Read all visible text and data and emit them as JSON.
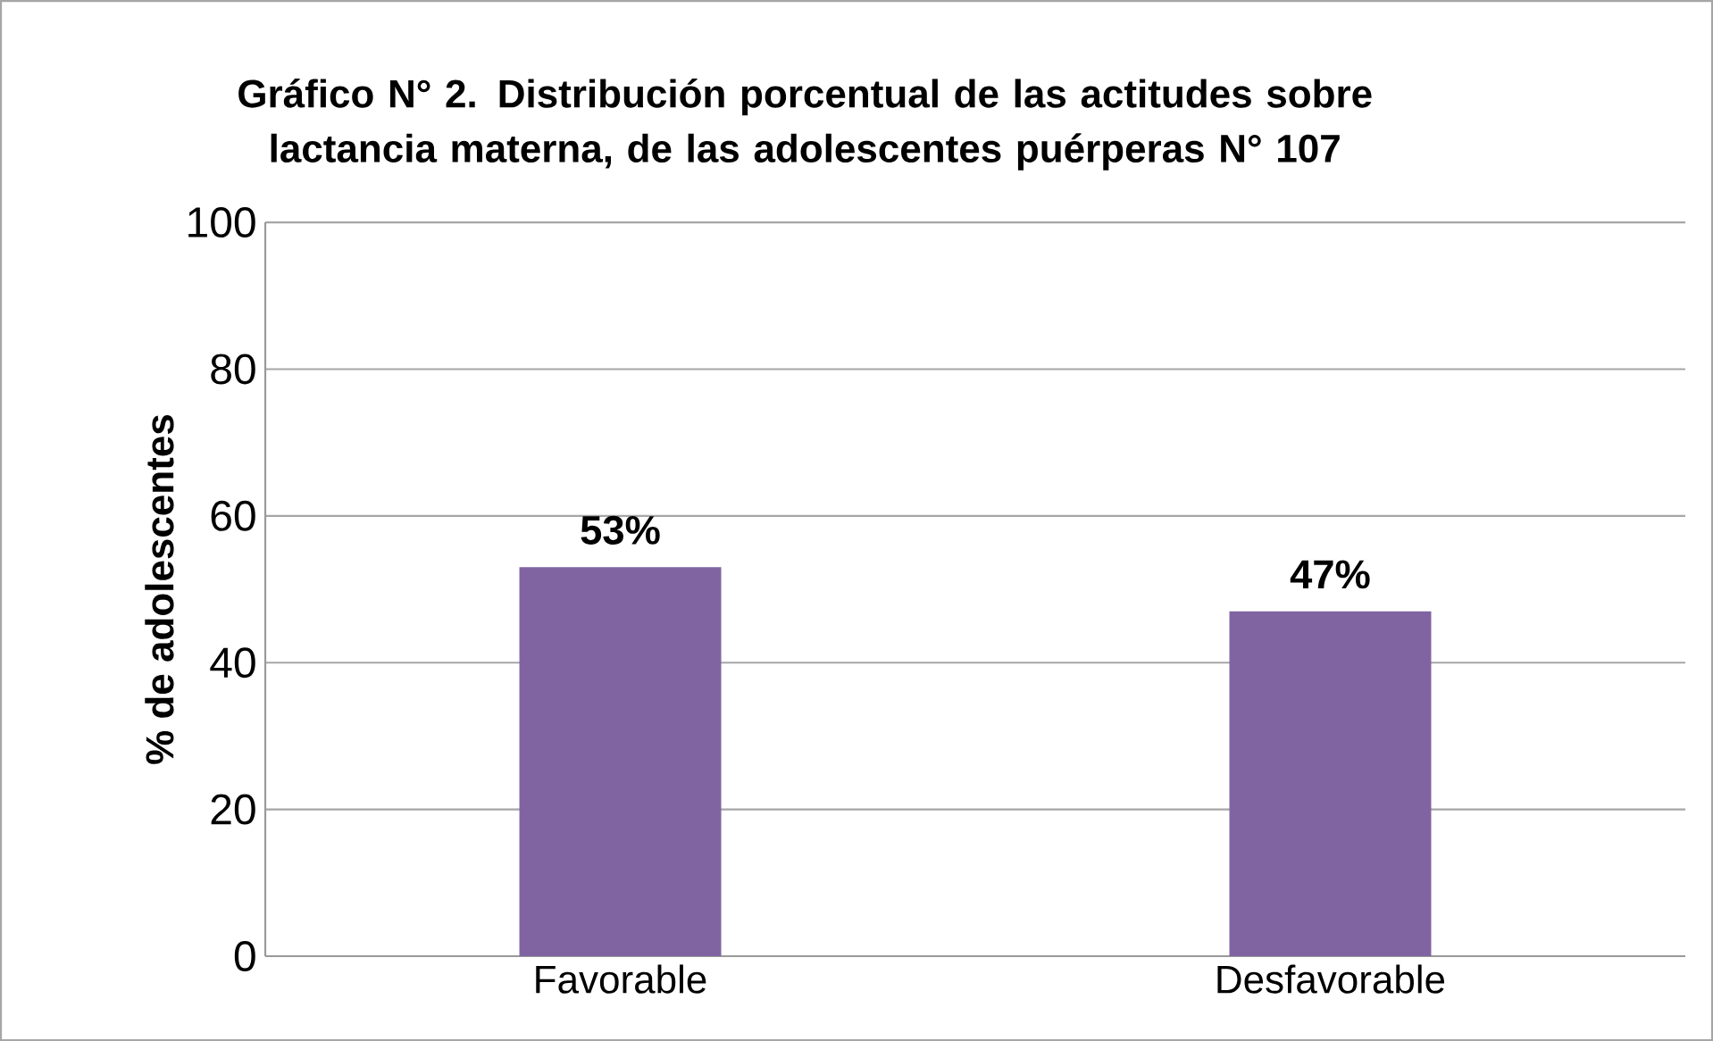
{
  "chart_data": {
    "type": "bar",
    "title": "Gráfico N° 2. Distribución porcentual de las actitudes sobre lactancia materna, de las adolescentes puérperas N° 107",
    "ylabel": "% de adolescentes",
    "categories": [
      "Favorable",
      "Desfavorable"
    ],
    "values": [
      53,
      47
    ],
    "value_labels": [
      "53%",
      "47%"
    ],
    "color": "#8064a2",
    "ylim": [
      0,
      100
    ],
    "yticks": [
      0,
      20,
      40,
      60,
      80,
      100
    ],
    "grid": "y"
  }
}
